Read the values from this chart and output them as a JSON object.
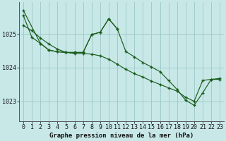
{
  "title": "Graphe pression niveau de la mer (hPa)",
  "background_color": "#c8e8e8",
  "grid_color": "#a0cccc",
  "line_color": "#1a5c1a",
  "x_ticks": [
    0,
    1,
    2,
    3,
    4,
    5,
    6,
    7,
    8,
    9,
    10,
    11,
    12,
    13,
    14,
    15,
    16,
    17,
    18,
    19,
    20,
    21,
    22,
    23
  ],
  "y_ticks": [
    1023,
    1024,
    1025
  ],
  "ylim": [
    1022.4,
    1025.95
  ],
  "xlim": [
    -0.5,
    23.5
  ],
  "series1_x": [
    0,
    1,
    2,
    3,
    4,
    5,
    6,
    7,
    8,
    9,
    10,
    11,
    12,
    13,
    14,
    15,
    16,
    17,
    18,
    19,
    20,
    21,
    22,
    23
  ],
  "series1_y": [
    1025.25,
    1025.1,
    1024.88,
    1024.7,
    1024.55,
    1024.45,
    1024.42,
    1024.42,
    1024.4,
    1024.35,
    1024.25,
    1024.1,
    1023.95,
    1023.82,
    1023.72,
    1023.6,
    1023.5,
    1023.4,
    1023.3,
    1023.12,
    1023.0,
    1023.62,
    1023.65,
    1023.65
  ],
  "series2_x": [
    0,
    1,
    2,
    3,
    4,
    5,
    6,
    7,
    8,
    9,
    10,
    11,
    12,
    13,
    14,
    15,
    16,
    17,
    18,
    19,
    20,
    21,
    22,
    23
  ],
  "series2_y": [
    1025.55,
    1024.9,
    1024.72,
    1024.52,
    1024.47,
    1024.45,
    1024.45,
    1024.45,
    1024.98,
    1025.05,
    1025.45,
    1025.15,
    1024.48,
    1024.32,
    1024.15,
    1024.02,
    1023.88,
    1023.62,
    1023.35,
    1023.03,
    1022.88,
    1023.25,
    1023.65,
    1023.68
  ],
  "series3_x": [
    0,
    2,
    3,
    4,
    5,
    6,
    7,
    8,
    9,
    10,
    11
  ],
  "series3_y": [
    1025.7,
    1024.72,
    1024.52,
    1024.47,
    1024.45,
    1024.45,
    1024.45,
    1024.98,
    1025.05,
    1025.45,
    1025.15
  ],
  "tick_fontsize": 6,
  "label_fontsize": 6.5
}
